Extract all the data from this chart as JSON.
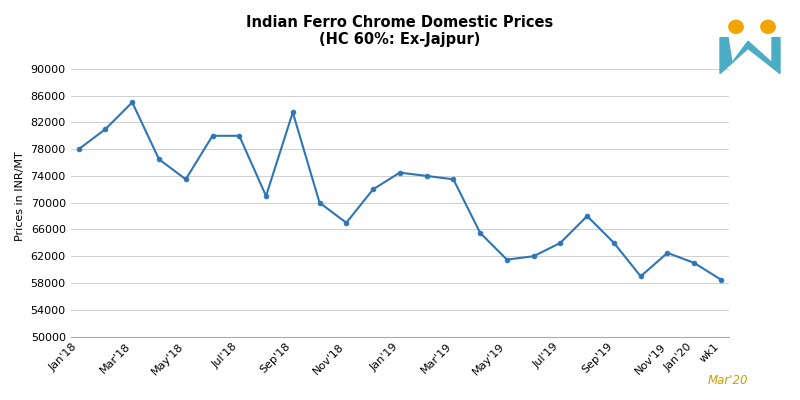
{
  "title_line1": "Indian Ferro Chrome Domestic Prices",
  "title_line2": "(HC 60%: Ex-Jajpur)",
  "ylabel": "Prices in INR/MT",
  "xlabel_note": "Mar'20",
  "x_tick_labels": [
    "Jan'18",
    "Mar'18",
    "May'18",
    "Jul'18",
    "Sep'18",
    "Nov'18",
    "Jan'19",
    "Mar'19",
    "May'19",
    "Jul'19",
    "Sep'19",
    "Nov'19",
    "Jan'20",
    "wk1"
  ],
  "y_values": [
    78000,
    81000,
    85000,
    76500,
    73500,
    80000,
    80000,
    71000,
    83500,
    70000,
    67000,
    72000,
    74500,
    74000,
    73500,
    65500,
    61500,
    62000,
    64000,
    68000,
    64000,
    59000,
    62500,
    61000,
    58500
  ],
  "line_color": "#2E75B6",
  "marker_color": "#2E75B6",
  "background_color": "#ffffff",
  "grid_color": "#d0d0d0",
  "ylim_min": 50000,
  "ylim_max": 92000,
  "yticks": [
    50000,
    54000,
    58000,
    62000,
    66000,
    70000,
    74000,
    78000,
    82000,
    86000,
    90000
  ],
  "icon_body_color": "#4BACC6",
  "icon_head_color": "#F0A500"
}
